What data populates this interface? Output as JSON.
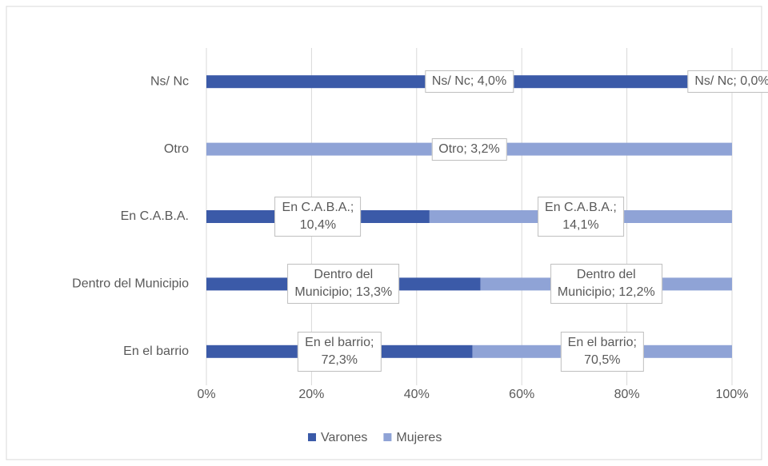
{
  "chart_data": {
    "type": "bar100h",
    "categories": [
      "En el barrio",
      "Dentro del Municipio",
      "En C.A.B.A.",
      "Otro",
      "Ns/ Nc"
    ],
    "series": [
      {
        "name": "Varones",
        "color": "#3b5aa8",
        "values": [
          72.3,
          13.3,
          10.4,
          0,
          4.0
        ],
        "value_labels": [
          "En el barrio;\n72,3%",
          "Dentro del\nMunicipio; 13,3%",
          "En C.A.B.A.;\n10,4%",
          null,
          "Ns/ Nc; 4,0%"
        ]
      },
      {
        "name": "Mujeres",
        "color": "#8fa3d6",
        "values": [
          70.5,
          12.2,
          14.1,
          3.2,
          0.0
        ],
        "value_labels": [
          "En el barrio;\n70,5%",
          "Dentro del\nMunicipio; 12,2%",
          "En C.A.B.A.;\n14,1%",
          "Otro; 3,2%",
          "Ns/ Nc; 0,0%"
        ]
      }
    ],
    "xlim": [
      0,
      100
    ],
    "xticks": [
      {
        "value": 0,
        "label": "0%"
      },
      {
        "value": 20,
        "label": "20%"
      },
      {
        "value": 40,
        "label": "40%"
      },
      {
        "value": 60,
        "label": "60%"
      },
      {
        "value": 80,
        "label": "80%"
      },
      {
        "value": 100,
        "label": "100%"
      }
    ],
    "grid": true,
    "legend": "bottom"
  }
}
